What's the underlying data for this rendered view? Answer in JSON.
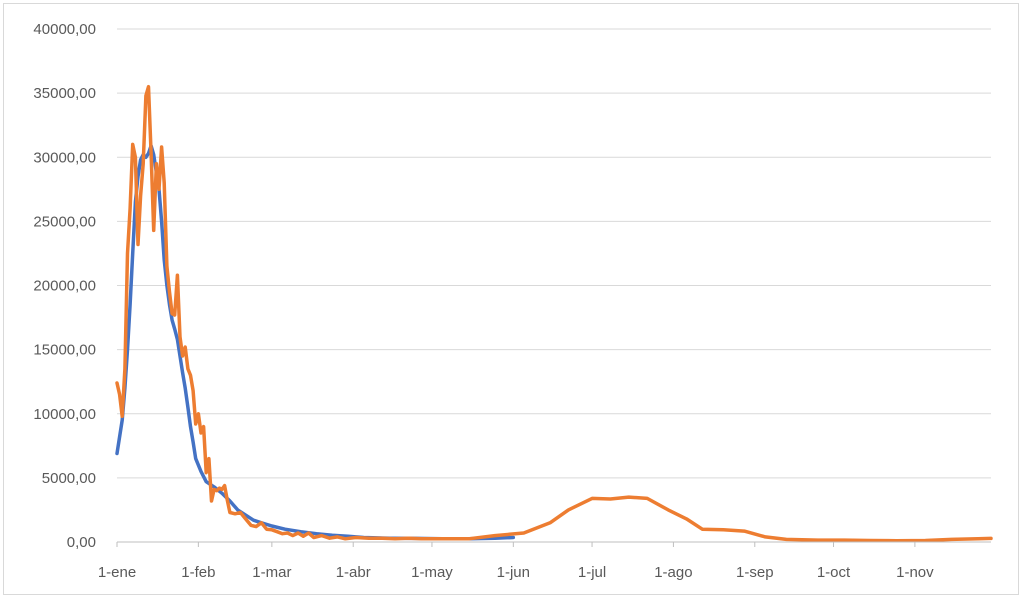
{
  "chart_data": {
    "type": "line",
    "title": "",
    "xlabel": "",
    "ylabel": "",
    "ylim": [
      0,
      40000
    ],
    "x_range": [
      "2021-01-01",
      "2021-11-30"
    ],
    "grid": true,
    "legend": "none",
    "y_ticks": [
      "0,00",
      "5000,00",
      "10000,00",
      "15000,00",
      "20000,00",
      "25000,00",
      "30000,00",
      "35000,00",
      "40000,00"
    ],
    "x_ticks": [
      {
        "date": "2021-01-01",
        "label": "1-ene"
      },
      {
        "date": "2021-02-01",
        "label": "1-feb"
      },
      {
        "date": "2021-03-01",
        "label": "1-mar"
      },
      {
        "date": "2021-04-01",
        "label": "1-abr"
      },
      {
        "date": "2021-05-01",
        "label": "1-may"
      },
      {
        "date": "2021-06-01",
        "label": "1-jun"
      },
      {
        "date": "2021-07-01",
        "label": "1-jul"
      },
      {
        "date": "2021-08-01",
        "label": "1-ago"
      },
      {
        "date": "2021-09-01",
        "label": "1-sep"
      },
      {
        "date": "2021-10-01",
        "label": "1-oct"
      },
      {
        "date": "2021-11-01",
        "label": "1-nov"
      }
    ],
    "series": [
      {
        "color": "#4472c4",
        "points": [
          [
            "2021-01-01",
            6900
          ],
          [
            "2021-01-02",
            8200
          ],
          [
            "2021-01-03",
            9500
          ],
          [
            "2021-01-04",
            12000
          ],
          [
            "2021-01-05",
            15000
          ],
          [
            "2021-01-06",
            18500
          ],
          [
            "2021-01-07",
            22500
          ],
          [
            "2021-01-08",
            26500
          ],
          [
            "2021-01-09",
            28500
          ],
          [
            "2021-01-10",
            29800
          ],
          [
            "2021-01-11",
            30200
          ],
          [
            "2021-01-12",
            30000
          ],
          [
            "2021-01-13",
            30300
          ],
          [
            "2021-01-14",
            30900
          ],
          [
            "2021-01-15",
            30200
          ],
          [
            "2021-01-16",
            28800
          ],
          [
            "2021-01-17",
            27500
          ],
          [
            "2021-01-18",
            25000
          ],
          [
            "2021-01-19",
            22000
          ],
          [
            "2021-01-20",
            20000
          ],
          [
            "2021-01-21",
            18500
          ],
          [
            "2021-01-22",
            17300
          ],
          [
            "2021-01-23",
            16600
          ],
          [
            "2021-01-24",
            15800
          ],
          [
            "2021-01-25",
            14500
          ],
          [
            "2021-01-26",
            13200
          ],
          [
            "2021-01-27",
            12000
          ],
          [
            "2021-01-28",
            10500
          ],
          [
            "2021-01-29",
            9000
          ],
          [
            "2021-01-30",
            7800
          ],
          [
            "2021-01-31",
            6500
          ],
          [
            "2021-02-02",
            5500
          ],
          [
            "2021-02-04",
            4700
          ],
          [
            "2021-02-07",
            4300
          ],
          [
            "2021-02-10",
            3800
          ],
          [
            "2021-02-13",
            3200
          ],
          [
            "2021-02-16",
            2500
          ],
          [
            "2021-02-19",
            2100
          ],
          [
            "2021-02-22",
            1700
          ],
          [
            "2021-02-25",
            1500
          ],
          [
            "2021-03-01",
            1250
          ],
          [
            "2021-03-06",
            1000
          ],
          [
            "2021-03-12",
            800
          ],
          [
            "2021-03-18",
            650
          ],
          [
            "2021-03-24",
            520
          ],
          [
            "2021-03-30",
            450
          ],
          [
            "2021-04-05",
            350
          ],
          [
            "2021-04-15",
            300
          ],
          [
            "2021-04-25",
            280
          ],
          [
            "2021-05-05",
            250
          ],
          [
            "2021-05-15",
            250
          ],
          [
            "2021-05-25",
            300
          ],
          [
            "2021-06-01",
            350
          ]
        ]
      },
      {
        "color": "#ed7d31",
        "points": [
          [
            "2021-01-01",
            12400
          ],
          [
            "2021-01-02",
            11500
          ],
          [
            "2021-01-03",
            9800
          ],
          [
            "2021-01-04",
            13500
          ],
          [
            "2021-01-05",
            22500
          ],
          [
            "2021-01-06",
            26000
          ],
          [
            "2021-01-07",
            31000
          ],
          [
            "2021-01-08",
            30000
          ],
          [
            "2021-01-09",
            23200
          ],
          [
            "2021-01-10",
            27000
          ],
          [
            "2021-01-11",
            29500
          ],
          [
            "2021-01-12",
            34800
          ],
          [
            "2021-01-13",
            35500
          ],
          [
            "2021-01-14",
            30300
          ],
          [
            "2021-01-15",
            24300
          ],
          [
            "2021-01-16",
            29500
          ],
          [
            "2021-01-17",
            27500
          ],
          [
            "2021-01-18",
            30800
          ],
          [
            "2021-01-19",
            28000
          ],
          [
            "2021-01-20",
            21500
          ],
          [
            "2021-01-21",
            19500
          ],
          [
            "2021-01-22",
            17800
          ],
          [
            "2021-01-23",
            17700
          ],
          [
            "2021-01-24",
            20800
          ],
          [
            "2021-01-25",
            16000
          ],
          [
            "2021-01-26",
            14500
          ],
          [
            "2021-01-27",
            15200
          ],
          [
            "2021-01-28",
            13500
          ],
          [
            "2021-01-29",
            13000
          ],
          [
            "2021-01-30",
            11800
          ],
          [
            "2021-01-31",
            9200
          ],
          [
            "2021-02-01",
            10000
          ],
          [
            "2021-02-02",
            8500
          ],
          [
            "2021-02-03",
            9000
          ],
          [
            "2021-02-04",
            5400
          ],
          [
            "2021-02-05",
            6500
          ],
          [
            "2021-02-06",
            3200
          ],
          [
            "2021-02-07",
            4100
          ],
          [
            "2021-02-08",
            4000
          ],
          [
            "2021-02-09",
            4200
          ],
          [
            "2021-02-10",
            4100
          ],
          [
            "2021-02-11",
            4400
          ],
          [
            "2021-02-12",
            3300
          ],
          [
            "2021-02-13",
            2300
          ],
          [
            "2021-02-15",
            2200
          ],
          [
            "2021-02-17",
            2300
          ],
          [
            "2021-02-19",
            1800
          ],
          [
            "2021-02-21",
            1300
          ],
          [
            "2021-02-23",
            1200
          ],
          [
            "2021-02-25",
            1500
          ],
          [
            "2021-02-27",
            1000
          ],
          [
            "2021-03-01",
            950
          ],
          [
            "2021-03-03",
            800
          ],
          [
            "2021-03-05",
            650
          ],
          [
            "2021-03-07",
            700
          ],
          [
            "2021-03-09",
            500
          ],
          [
            "2021-03-11",
            700
          ],
          [
            "2021-03-13",
            450
          ],
          [
            "2021-03-15",
            700
          ],
          [
            "2021-03-17",
            350
          ],
          [
            "2021-03-20",
            500
          ],
          [
            "2021-03-23",
            300
          ],
          [
            "2021-03-26",
            400
          ],
          [
            "2021-03-29",
            250
          ],
          [
            "2021-04-02",
            350
          ],
          [
            "2021-04-07",
            300
          ],
          [
            "2021-04-12",
            300
          ],
          [
            "2021-04-17",
            250
          ],
          [
            "2021-04-22",
            300
          ],
          [
            "2021-04-27",
            250
          ],
          [
            "2021-05-05",
            250
          ],
          [
            "2021-05-15",
            250
          ],
          [
            "2021-05-25",
            500
          ],
          [
            "2021-06-05",
            700
          ],
          [
            "2021-06-15",
            1500
          ],
          [
            "2021-06-22",
            2500
          ],
          [
            "2021-07-01",
            3400
          ],
          [
            "2021-07-08",
            3350
          ],
          [
            "2021-07-15",
            3500
          ],
          [
            "2021-07-22",
            3400
          ],
          [
            "2021-07-30",
            2500
          ],
          [
            "2021-08-06",
            1800
          ],
          [
            "2021-08-12",
            1000
          ],
          [
            "2021-08-20",
            950
          ],
          [
            "2021-08-28",
            850
          ],
          [
            "2021-09-05",
            400
          ],
          [
            "2021-09-13",
            200
          ],
          [
            "2021-09-25",
            150
          ],
          [
            "2021-10-05",
            150
          ],
          [
            "2021-10-15",
            120
          ],
          [
            "2021-10-25",
            100
          ],
          [
            "2021-11-05",
            120
          ],
          [
            "2021-11-15",
            200
          ],
          [
            "2021-11-25",
            250
          ],
          [
            "2021-11-30",
            280
          ]
        ]
      }
    ]
  }
}
